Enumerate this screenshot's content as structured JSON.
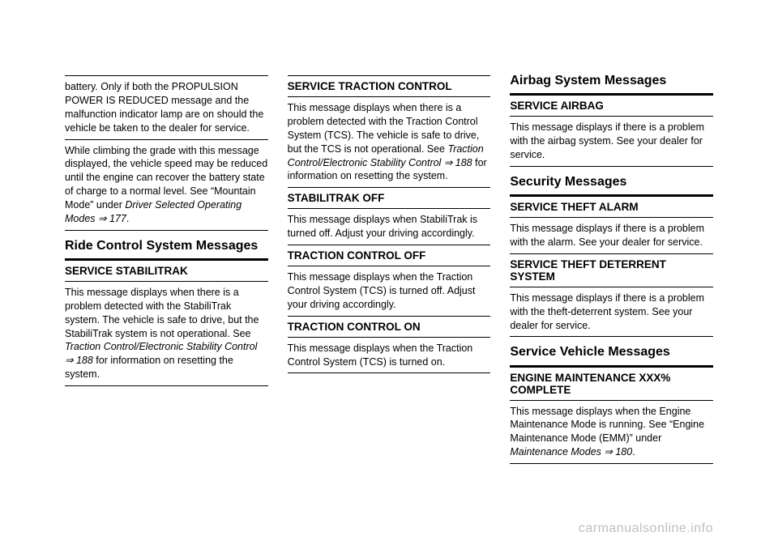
{
  "col1": {
    "p1": "battery. Only if both the PROPULSION POWER IS REDUCED message and the malfunction indicator lamp are on should the vehicle be taken to the dealer for service.",
    "p2_a": "While climbing the grade with this message displayed, the vehicle speed may be reduced until the engine can recover the battery state of charge to a normal level. See “Mountain Mode” under ",
    "p2_b": "Driver Selected Operating Modes ",
    "p2_c": "⇒ 177",
    "p2_d": ".",
    "h2a": "Ride Control System Messages",
    "h3a": "SERVICE STABILITRAK",
    "p3_a": "This message displays when there is a problem detected with the StabiliTrak system. The vehicle is safe to drive, but the StabiliTrak system is not operational. See ",
    "p3_b": "Traction Control/Electronic Stability Control ",
    "p3_c": "⇒ 188",
    "p3_d": " for information on resetting the system."
  },
  "col2": {
    "h3a": "SERVICE TRACTION CONTROL",
    "p1_a": "This message displays when there is a problem detected with the Traction Control System (TCS). The vehicle is safe to drive, but the TCS is not operational. See ",
    "p1_b": "Traction Control/Electronic Stability Control ",
    "p1_c": "⇒ 188",
    "p1_d": " for information on resetting the system.",
    "h3b": "STABILITRAK OFF",
    "p2": "This message displays when StabiliTrak is turned off. Adjust your driving accordingly.",
    "h3c": "TRACTION CONTROL OFF",
    "p3": "This message displays when the Traction Control System (TCS) is turned off. Adjust your driving accordingly.",
    "h3d": "TRACTION CONTROL ON",
    "p4": "This message displays when the Traction Control System (TCS) is turned on."
  },
  "col3": {
    "h2a": "Airbag System Messages",
    "h3a": "SERVICE AIRBAG",
    "p1": "This message displays if there is a problem with the airbag system. See your dealer for service.",
    "h2b": "Security Messages",
    "h3b": "SERVICE THEFT ALARM",
    "p2": "This message displays if there is a problem with the alarm. See your dealer for service.",
    "h3c": "SERVICE THEFT DETERRENT SYSTEM",
    "p3": "This message displays if there is a problem with the theft-deterrent system. See your dealer for service.",
    "h2c": "Service Vehicle Messages",
    "h3d": "ENGINE MAINTENANCE XXX% COMPLETE",
    "p4_a": "This message displays when the Engine Maintenance Mode is running. See “Engine Maintenance Mode (EMM)” under ",
    "p4_b": "Maintenance Modes ",
    "p4_c": "⇒ 180",
    "p4_d": "."
  },
  "watermark": "carmanualsonline.info"
}
